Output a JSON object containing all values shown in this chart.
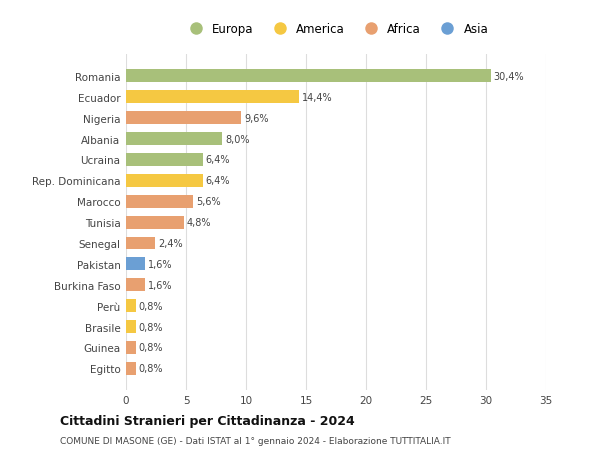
{
  "countries": [
    "Romania",
    "Ecuador",
    "Nigeria",
    "Albania",
    "Ucraina",
    "Rep. Dominicana",
    "Marocco",
    "Tunisia",
    "Senegal",
    "Pakistan",
    "Burkina Faso",
    "Perù",
    "Brasile",
    "Guinea",
    "Egitto"
  ],
  "values": [
    30.4,
    14.4,
    9.6,
    8.0,
    6.4,
    6.4,
    5.6,
    4.8,
    2.4,
    1.6,
    1.6,
    0.8,
    0.8,
    0.8,
    0.8
  ],
  "labels": [
    "30,4%",
    "14,4%",
    "9,6%",
    "8,0%",
    "6,4%",
    "6,4%",
    "5,6%",
    "4,8%",
    "2,4%",
    "1,6%",
    "1,6%",
    "0,8%",
    "0,8%",
    "0,8%",
    "0,8%"
  ],
  "categories": [
    "Europa",
    "America",
    "Africa",
    "Europa",
    "Europa",
    "America",
    "Africa",
    "Africa",
    "Africa",
    "Asia",
    "Africa",
    "America",
    "America",
    "Africa",
    "Africa"
  ],
  "colors": {
    "Europa": "#a8c07a",
    "America": "#f5c842",
    "Africa": "#e8a070",
    "Asia": "#6b9fd4"
  },
  "legend_order": [
    "Europa",
    "America",
    "Africa",
    "Asia"
  ],
  "title": "Cittadini Stranieri per Cittadinanza - 2024",
  "subtitle": "COMUNE DI MASONE (GE) - Dati ISTAT al 1° gennaio 2024 - Elaborazione TUTTITALIA.IT",
  "xlim": [
    0,
    35
  ],
  "xticks": [
    0,
    5,
    10,
    15,
    20,
    25,
    30,
    35
  ],
  "background_color": "#ffffff",
  "grid_color": "#dddddd"
}
